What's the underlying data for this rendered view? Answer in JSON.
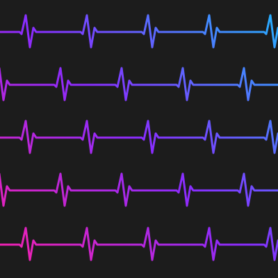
{
  "background": "#1c1c1c",
  "pattern": {
    "row_count": 5,
    "beats_per_row": 5,
    "gradient_stops": [
      "#ff1fa8",
      "#8a2cff",
      "#1fb8ff"
    ],
    "waveform": "ecg-heartbeat"
  }
}
